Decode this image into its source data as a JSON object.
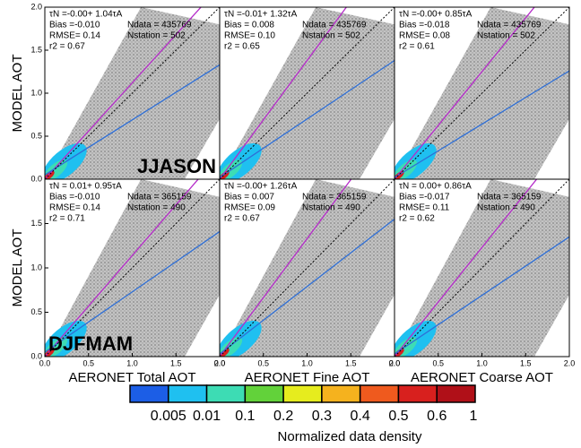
{
  "chart_data": [
    {
      "type": "scatter",
      "xlim": [
        0,
        2
      ],
      "ylim": [
        0,
        2
      ],
      "ylabel": "MODEL AOT",
      "season_label": "JJASON",
      "yticks": [
        {
          "value": 0,
          "label": "0.0"
        },
        {
          "value": 0.5,
          "label": "0.5"
        },
        {
          "value": 1,
          "label": "1.0"
        },
        {
          "value": 1.5,
          "label": "1.5"
        },
        {
          "value": 2,
          "label": "2.0"
        }
      ],
      "fit_text": "τN =-0.00+ 1.04τA",
      "stats": [
        "Bias =-0.010",
        "Ndata = 435769",
        "RMSE= 0.14",
        "Nstation = 502",
        "r2 = 0.67"
      ],
      "lines": [
        {
          "color": "#b52bc9",
          "intercept": 0,
          "slope": 1.12
        },
        {
          "color": "#2f6fd6",
          "intercept": 0.05,
          "slope": 0.64
        },
        {
          "color": "#000000",
          "intercept": 0,
          "slope": 1,
          "dashed": true
        }
      ]
    },
    {
      "type": "scatter",
      "xlim": [
        0,
        2
      ],
      "ylim": [
        0,
        2
      ],
      "fit_text": "τN =-0.01+ 1.32τA",
      "stats": [
        "Bias = 0.008",
        "Ndata = 435769",
        "RMSE= 0.10",
        "Nstation = 502",
        "r2 = 0.65"
      ],
      "lines": [
        {
          "color": "#b52bc9",
          "intercept": 0,
          "slope": 1.38
        },
        {
          "color": "#2f6fd6",
          "intercept": 0.02,
          "slope": 0.68
        },
        {
          "color": "#000000",
          "intercept": 0,
          "slope": 1,
          "dashed": true
        }
      ]
    },
    {
      "type": "scatter",
      "xlim": [
        0,
        2
      ],
      "ylim": [
        0,
        2
      ],
      "fit_text": "τN =-0.00+ 0.85τA",
      "stats": [
        "Bias =-0.018",
        "Ndata = 435769",
        "RMSE= 0.08",
        "Nstation = 502",
        "r2 = 0.61"
      ],
      "lines": [
        {
          "color": "#b52bc9",
          "intercept": 0,
          "slope": 1.25
        },
        {
          "color": "#2f6fd6",
          "intercept": 0.02,
          "slope": 0.62
        },
        {
          "color": "#000000",
          "intercept": 0,
          "slope": 1,
          "dashed": true
        }
      ]
    },
    {
      "type": "scatter",
      "xlim": [
        0,
        2
      ],
      "ylim": [
        0,
        2
      ],
      "ylabel": "MODEL AOT",
      "xlabel": "AERONET Total AOT",
      "season_label": "DJFMAM",
      "yticks": [
        {
          "value": 0,
          "label": "0.0"
        },
        {
          "value": 0.5,
          "label": "0.5"
        },
        {
          "value": 1,
          "label": "1.0"
        },
        {
          "value": 1.5,
          "label": "1.5"
        }
      ],
      "xticks": [
        {
          "value": 0,
          "label": "0.0"
        },
        {
          "value": 0.5,
          "label": "0.5"
        },
        {
          "value": 1,
          "label": "1.0"
        },
        {
          "value": 1.5,
          "label": "1.5"
        },
        {
          "value": 2,
          "label": "2.0"
        }
      ],
      "fit_text": "τN = 0.01+ 0.95τA",
      "stats": [
        "Bias =-0.010",
        "Ndata = 365159",
        "RMSE= 0.14",
        "Nstation = 490",
        "r2 = 0.71"
      ],
      "lines": [
        {
          "color": "#b52bc9",
          "intercept": 0,
          "slope": 1.14
        },
        {
          "color": "#2f6fd6",
          "intercept": 0.05,
          "slope": 0.68
        },
        {
          "color": "#000000",
          "intercept": 0,
          "slope": 1,
          "dashed": true
        }
      ]
    },
    {
      "type": "scatter",
      "xlim": [
        0,
        2
      ],
      "ylim": [
        0,
        2
      ],
      "xlabel": "AERONET Fine AOT",
      "xticks": [
        {
          "value": 0,
          "label": "0.0"
        },
        {
          "value": 0.5,
          "label": "0.5"
        },
        {
          "value": 1,
          "label": "1.0"
        },
        {
          "value": 1.5,
          "label": "1.5"
        },
        {
          "value": 2,
          "label": "2.0"
        }
      ],
      "fit_text": "τN =-0.00+ 1.26τA",
      "stats": [
        "Bias = 0.007",
        "Ndata = 365159",
        "RMSE= 0.09",
        "Nstation = 490",
        "r2 = 0.67"
      ],
      "lines": [
        {
          "color": "#b52bc9",
          "intercept": 0,
          "slope": 1.33
        },
        {
          "color": "#2f6fd6",
          "intercept": 0.03,
          "slope": 0.76
        },
        {
          "color": "#000000",
          "intercept": 0,
          "slope": 1,
          "dashed": true
        }
      ]
    },
    {
      "type": "scatter",
      "xlim": [
        0,
        2
      ],
      "ylim": [
        0,
        2
      ],
      "xlabel": "AERONET Coarse AOT",
      "xticks": [
        {
          "value": 0,
          "label": "0.0"
        },
        {
          "value": 0.5,
          "label": "0.5"
        },
        {
          "value": 1,
          "label": "1.0"
        },
        {
          "value": 1.5,
          "label": "1.5"
        },
        {
          "value": 2,
          "label": "2.0"
        }
      ],
      "fit_text": "τN = 0.00+ 0.86τA",
      "stats": [
        "Bias =-0.017",
        "Ndata = 365159",
        "RMSE= 0.11",
        "Nstation = 490",
        "r2 = 0.62"
      ],
      "lines": [
        {
          "color": "#b52bc9",
          "intercept": 0,
          "slope": 1.23
        },
        {
          "color": "#2f6fd6",
          "intercept": 0.03,
          "slope": 0.66
        },
        {
          "color": "#000000",
          "intercept": 0,
          "slope": 1,
          "dashed": true
        }
      ]
    }
  ],
  "colorbar": {
    "title": "Normalized data density",
    "colors": [
      "#1c5ee6",
      "#1fc0f0",
      "#3ddcb4",
      "#62d23a",
      "#e6ec1e",
      "#f5b21e",
      "#ef5a1e",
      "#d8201e",
      "#b01018"
    ],
    "ticks": [
      0.005,
      0.01,
      0.1,
      0.2,
      0.3,
      0.4,
      0.5,
      0.6,
      1
    ]
  }
}
